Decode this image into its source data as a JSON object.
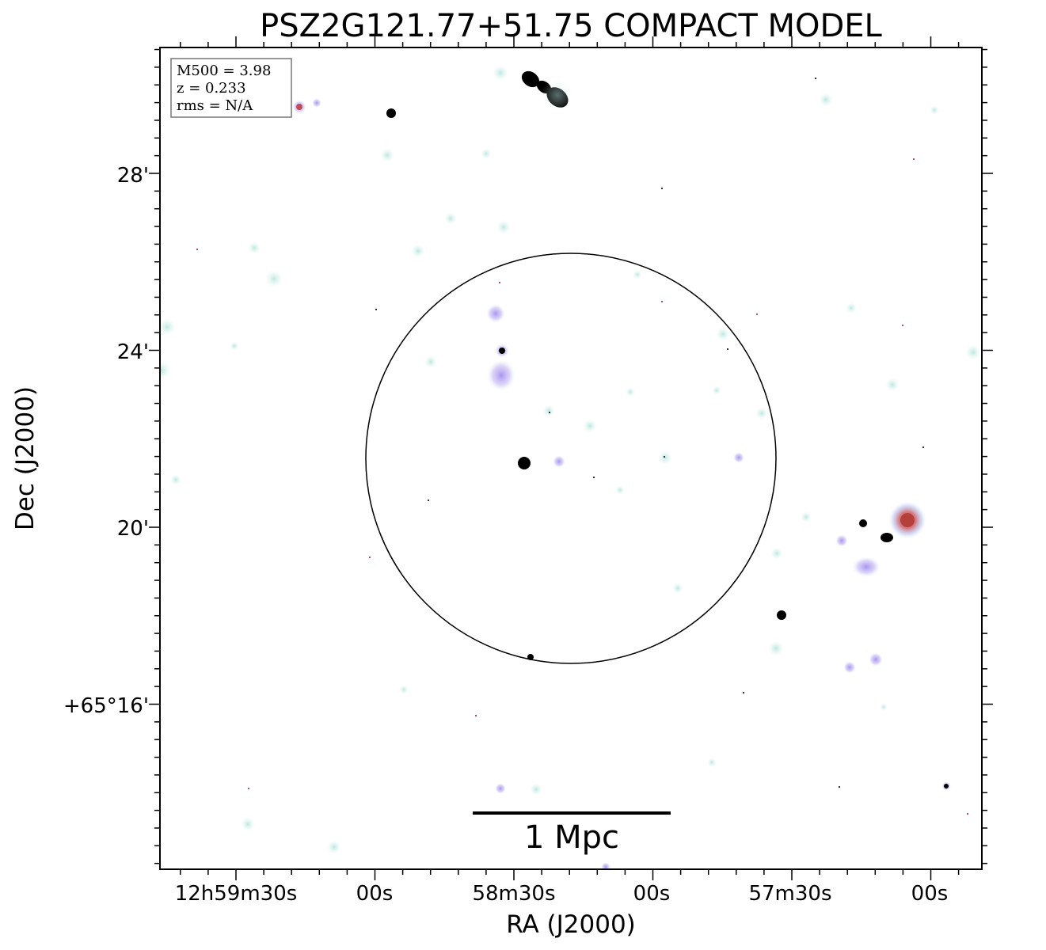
{
  "title": "PSZ2G121.77+51.75 COMPACT MODEL",
  "info_box": {
    "lines": [
      "M500 = 3.98",
      "z = 0.233",
      "rms = N/A"
    ]
  },
  "axes": {
    "x_label": "RA (J2000)",
    "y_label": "Dec (J2000)",
    "x_tick_labels": [
      "12h59m30s",
      "00s",
      "58m30s",
      "00s",
      "57m30s",
      "00s"
    ],
    "y_tick_labels": [
      "28'",
      "24'",
      "20'",
      "+65°16'"
    ]
  },
  "scale_bar": {
    "label": "1 Mpc"
  },
  "colors": {
    "frame": "#000000",
    "source_core": "#000000",
    "halo_cyan": "#cfeee9",
    "halo_violet": "#b9a6ee",
    "halo_red": "#c2444a"
  }
}
